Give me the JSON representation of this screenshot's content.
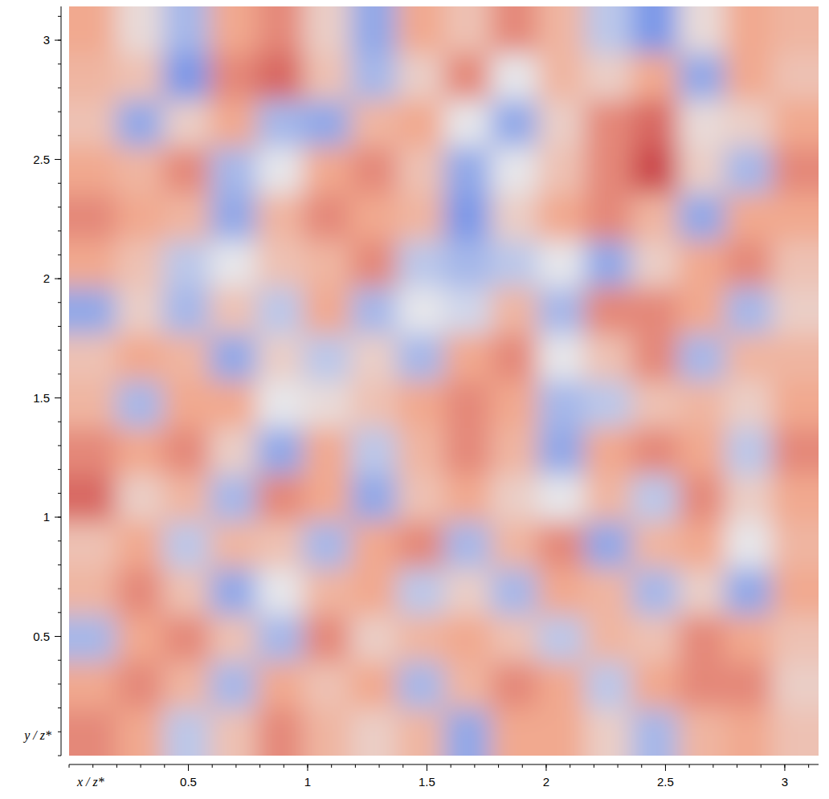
{
  "chart_data": {
    "type": "heatmap",
    "x_label": "x / z*",
    "y_label": "y / z*",
    "xlim": [
      0,
      3.1416
    ],
    "ylim": [
      0,
      3.1416
    ],
    "xticks": [
      0.5,
      1.0,
      1.5,
      2.0,
      2.5,
      3.0
    ],
    "yticks": [
      0.5,
      1.0,
      1.5,
      2.0,
      2.5,
      3.0
    ],
    "color_range": [
      -1,
      1
    ],
    "cells": [
      [
        0.5,
        0.1,
        -0.3,
        0.5,
        0.6,
        0.2,
        -0.4,
        0.5,
        0.3,
        0.6,
        0.4,
        -0.2,
        -0.5,
        0.1,
        0.5,
        0.4
      ],
      [
        0.4,
        0.3,
        -0.5,
        0.6,
        0.7,
        0.3,
        -0.3,
        0.2,
        0.6,
        0.0,
        0.4,
        0.2,
        0.5,
        -0.4,
        0.5,
        0.3
      ],
      [
        0.3,
        -0.4,
        0.2,
        0.5,
        -0.3,
        -0.4,
        0.4,
        0.5,
        0.0,
        -0.4,
        0.2,
        0.6,
        0.7,
        0.1,
        0.2,
        0.5
      ],
      [
        0.5,
        0.4,
        0.6,
        -0.3,
        0.0,
        0.5,
        0.6,
        0.3,
        -0.4,
        0.0,
        0.3,
        0.6,
        0.8,
        0.2,
        -0.3,
        0.6
      ],
      [
        0.6,
        0.5,
        0.4,
        -0.4,
        0.4,
        0.6,
        0.5,
        0.4,
        -0.5,
        0.2,
        0.5,
        0.6,
        0.4,
        -0.4,
        0.5,
        0.5
      ],
      [
        0.5,
        0.3,
        -0.2,
        0.0,
        0.3,
        0.4,
        0.6,
        -0.2,
        -0.3,
        -0.2,
        0.0,
        -0.4,
        0.2,
        0.5,
        0.6,
        0.3
      ],
      [
        -0.4,
        0.2,
        -0.3,
        0.3,
        -0.2,
        0.5,
        -0.3,
        0.0,
        -0.1,
        0.4,
        -0.3,
        0.6,
        0.6,
        0.5,
        -0.3,
        0.2
      ],
      [
        0.3,
        0.5,
        0.4,
        -0.4,
        0.2,
        -0.2,
        0.2,
        -0.3,
        0.5,
        0.6,
        0.0,
        0.3,
        0.6,
        -0.3,
        0.4,
        0.4
      ],
      [
        0.4,
        -0.3,
        0.5,
        0.5,
        0.0,
        0.1,
        0.3,
        0.5,
        0.6,
        0.5,
        -0.3,
        -0.2,
        0.3,
        0.4,
        0.2,
        0.5
      ],
      [
        0.6,
        0.5,
        0.6,
        0.2,
        -0.4,
        0.5,
        -0.2,
        0.4,
        0.6,
        0.4,
        -0.4,
        0.5,
        0.6,
        0.5,
        -0.2,
        0.6
      ],
      [
        0.7,
        0.2,
        0.4,
        -0.3,
        0.6,
        0.5,
        -0.4,
        0.3,
        0.5,
        0.2,
        0.0,
        0.4,
        -0.2,
        0.6,
        0.2,
        0.5
      ],
      [
        0.3,
        0.5,
        -0.2,
        0.4,
        0.3,
        -0.3,
        0.5,
        0.6,
        -0.3,
        0.4,
        0.6,
        -0.4,
        0.4,
        0.5,
        0.0,
        0.4
      ],
      [
        0.4,
        0.6,
        0.3,
        -0.4,
        0.0,
        0.4,
        0.5,
        -0.2,
        0.2,
        -0.3,
        0.5,
        0.4,
        -0.3,
        0.2,
        -0.4,
        0.5
      ],
      [
        -0.3,
        0.5,
        0.6,
        0.3,
        -0.3,
        0.6,
        0.2,
        0.4,
        0.5,
        0.3,
        -0.2,
        0.4,
        0.3,
        0.6,
        0.5,
        0.3
      ],
      [
        0.5,
        0.6,
        0.4,
        -0.3,
        0.5,
        0.3,
        0.5,
        -0.3,
        0.4,
        0.6,
        0.5,
        -0.2,
        0.5,
        0.6,
        0.6,
        0.2
      ],
      [
        0.6,
        0.5,
        -0.2,
        0.3,
        0.6,
        0.4,
        0.2,
        0.4,
        -0.4,
        0.5,
        0.5,
        0.2,
        -0.3,
        0.4,
        0.5,
        0.3
      ]
    ]
  }
}
